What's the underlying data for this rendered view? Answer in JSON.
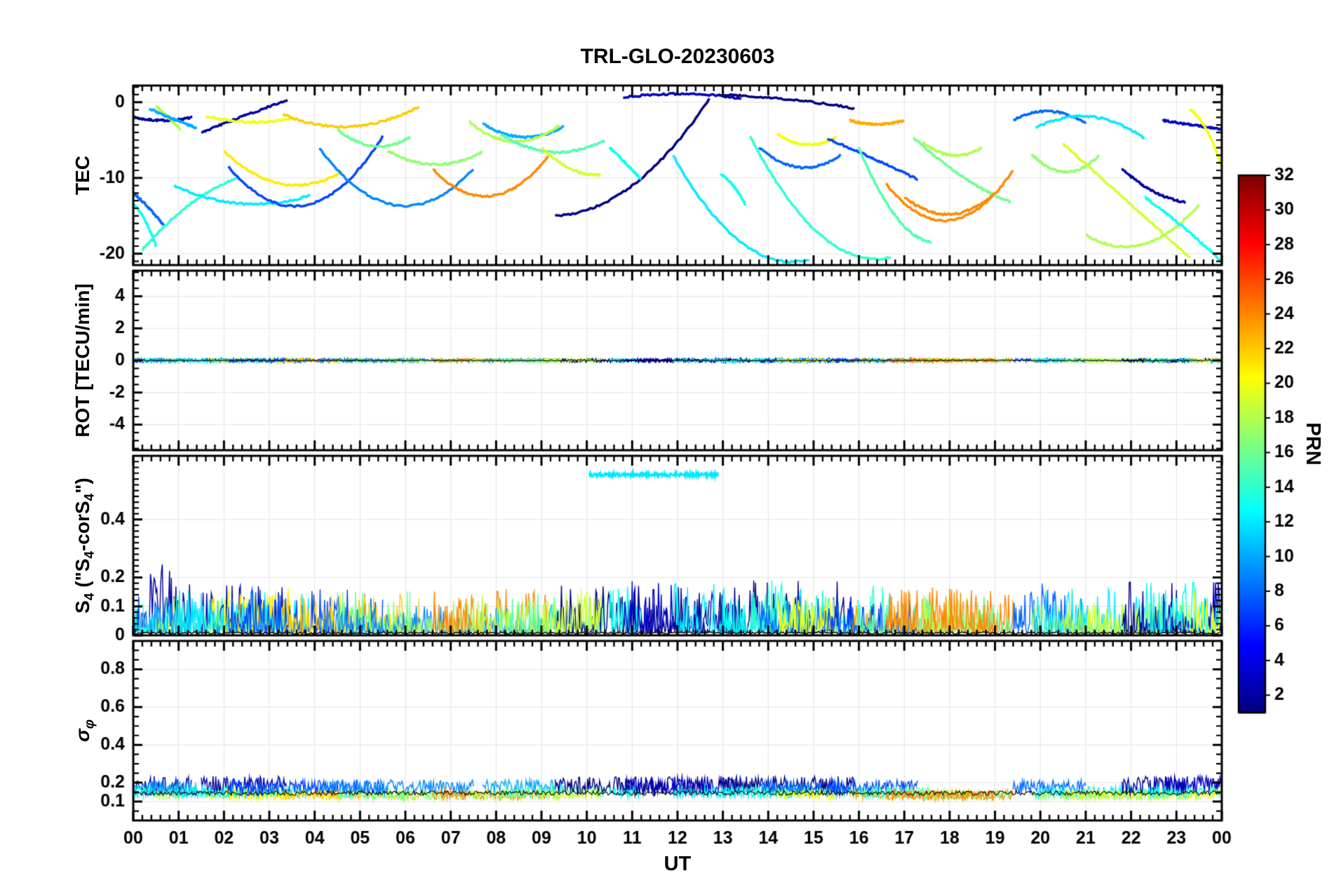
{
  "title": "TRL-GLO-20230603",
  "labels": {
    "ut": "UT",
    "tec": "TEC",
    "rot": "ROT [TECU/min]",
    "s4_parts": {
      "a": "S",
      "b": "4",
      "c": " (\"S",
      "d": "4",
      "e": "-corS",
      "f": "4",
      "g": "\")"
    },
    "sigma_parts": {
      "a": "σ",
      "b": "φ"
    },
    "prn": "PRN"
  },
  "axes": {
    "xticks": [
      {
        "v": 0,
        "l": "00"
      },
      {
        "v": 1,
        "l": "01"
      },
      {
        "v": 2,
        "l": "02"
      },
      {
        "v": 3,
        "l": "03"
      },
      {
        "v": 4,
        "l": "04"
      },
      {
        "v": 5,
        "l": "05"
      },
      {
        "v": 6,
        "l": "06"
      },
      {
        "v": 7,
        "l": "07"
      },
      {
        "v": 8,
        "l": "08"
      },
      {
        "v": 9,
        "l": "09"
      },
      {
        "v": 10,
        "l": "10"
      },
      {
        "v": 11,
        "l": "11"
      },
      {
        "v": 12,
        "l": "12"
      },
      {
        "v": 13,
        "l": "13"
      },
      {
        "v": 14,
        "l": "14"
      },
      {
        "v": 15,
        "l": "15"
      },
      {
        "v": 16,
        "l": "16"
      },
      {
        "v": 17,
        "l": "17"
      },
      {
        "v": 18,
        "l": "18"
      },
      {
        "v": 19,
        "l": "19"
      },
      {
        "v": 20,
        "l": "20"
      },
      {
        "v": 21,
        "l": "21"
      },
      {
        "v": 22,
        "l": "22"
      },
      {
        "v": 23,
        "l": "23"
      },
      {
        "v": 24,
        "l": "00"
      }
    ],
    "xminor": 0.2,
    "panels": [
      {
        "key": "tec",
        "ylim": [
          -21.5,
          2.2
        ],
        "yticks": [
          {
            "v": 0,
            "l": "0"
          },
          {
            "v": -10,
            "l": "-10"
          },
          {
            "v": -20,
            "l": "-20"
          }
        ],
        "yminor": 1
      },
      {
        "key": "rot",
        "ylim": [
          -5.6,
          5.6
        ],
        "yticks": [
          {
            "v": 4,
            "l": "4"
          },
          {
            "v": 2,
            "l": "2"
          },
          {
            "v": 0,
            "l": "0"
          },
          {
            "v": -2,
            "l": "-2"
          },
          {
            "v": -4,
            "l": "-4"
          }
        ],
        "yminor": 0.5
      },
      {
        "key": "s4",
        "ylim": [
          0,
          0.62
        ],
        "yticks": [
          {
            "v": 0.4,
            "l": "0.4"
          },
          {
            "v": 0.2,
            "l": "0.2"
          },
          {
            "v": 0.1,
            "l": "0.1"
          },
          {
            "v": 0,
            "l": "0"
          }
        ],
        "yminor": 0.02
      },
      {
        "key": "sigma_phi",
        "ylim": [
          0,
          0.95
        ],
        "yticks": [
          {
            "v": 0.8,
            "l": "0.8"
          },
          {
            "v": 0.6,
            "l": "0.6"
          },
          {
            "v": 0.4,
            "l": "0.4"
          },
          {
            "v": 0.2,
            "l": "0.2"
          },
          {
            "v": 0.1,
            "l": "0.1"
          }
        ],
        "yminor": 0.05
      }
    ]
  },
  "colorbar": {
    "label": "PRN",
    "range": [
      1,
      32
    ],
    "ticks": [
      2,
      4,
      6,
      8,
      10,
      12,
      14,
      16,
      18,
      20,
      22,
      24,
      26,
      28,
      30,
      32
    ],
    "colormap": "jet"
  },
  "chart_data": {
    "type": "line",
    "title": "TRL-GLO-20230603",
    "xlabel": "UT",
    "x_range_hours": [
      0,
      24
    ],
    "color_by": "PRN",
    "prn_range": [
      1,
      32
    ],
    "colormap": "jet",
    "panel_descriptions": [
      "TEC satellite arcs, values 2 to -21 TECU",
      "ROT rate of TEC, flat band near 0 TECU/min",
      "S4 scintillation index, noisy 0-0.2 with cyan plateau 0.55 from 10-13 UT",
      "sigma-phi phase scintillation, noisy band 0.1-0.3"
    ],
    "tec_arcs": [
      {
        "prn": 2,
        "t": [
          0.0,
          1.3
        ],
        "y": [
          -2.0,
          -2.4,
          -2.0
        ]
      },
      {
        "prn": 8,
        "t": [
          0.0,
          0.7
        ],
        "y": [
          -12.0,
          -14.0,
          -16.5
        ]
      },
      {
        "prn": 13,
        "t": [
          0.0,
          0.5
        ],
        "y": [
          -13.5,
          -15.5,
          -19.0
        ]
      },
      {
        "prn": 14,
        "t": [
          0.2,
          2.3
        ],
        "y": [
          -19.5,
          -13.5,
          -10.0
        ]
      },
      {
        "prn": 18,
        "t": [
          0.5,
          1.05
        ],
        "y": [
          -0.5,
          -2.0,
          -3.6
        ]
      },
      {
        "prn": 10,
        "t": [
          0.35,
          1.4
        ],
        "y": [
          -0.8,
          -2.2,
          -3.4
        ]
      },
      {
        "prn": 2,
        "t": [
          1.5,
          3.4
        ],
        "y": [
          -4.0,
          -1.8,
          0.3
        ]
      },
      {
        "prn": 20,
        "t": [
          1.6,
          3.55
        ],
        "y": [
          -1.8,
          -2.6,
          -2.1
        ]
      },
      {
        "prn": 21,
        "t": [
          2.0,
          4.6
        ],
        "y": [
          -6.5,
          -10.8,
          -9.2
        ]
      },
      {
        "prn": 12,
        "t": [
          0.9,
          3.9
        ],
        "y": [
          -11.0,
          -13.4,
          -12.3
        ]
      },
      {
        "prn": 7,
        "t": [
          2.1,
          5.5
        ],
        "y": [
          -8.5,
          -13.6,
          -4.5
        ]
      },
      {
        "prn": 22,
        "t": [
          3.3,
          6.3
        ],
        "y": [
          -1.6,
          -3.2,
          -0.6
        ]
      },
      {
        "prn": 16,
        "t": [
          4.5,
          6.1
        ],
        "y": [
          -3.6,
          -5.8,
          -4.6
        ]
      },
      {
        "prn": 9,
        "t": [
          4.1,
          7.5
        ],
        "y": [
          -6.0,
          -13.6,
          -8.8
        ]
      },
      {
        "prn": 17,
        "t": [
          5.6,
          7.7
        ],
        "y": [
          -6.4,
          -8.2,
          -6.6
        ]
      },
      {
        "prn": 24,
        "t": [
          6.6,
          9.15
        ],
        "y": [
          -8.8,
          -12.4,
          -7.2
        ]
      },
      {
        "prn": 10,
        "t": [
          7.7,
          9.5
        ],
        "y": [
          -2.8,
          -4.6,
          -3.2
        ]
      },
      {
        "prn": 18,
        "t": [
          7.4,
          9.4
        ],
        "y": [
          -2.6,
          -5.2,
          -3.0
        ]
      },
      {
        "prn": 15,
        "t": [
          8.1,
          10.4
        ],
        "y": [
          -4.2,
          -6.6,
          -5.0
        ]
      },
      {
        "prn": 1,
        "t": [
          9.3,
          12.7
        ],
        "y": [
          -15.0,
          -11.0,
          0.4
        ]
      },
      {
        "prn": 19,
        "t": [
          9.0,
          10.3
        ],
        "y": [
          -6.0,
          -8.8,
          -9.6
        ]
      },
      {
        "prn": 13,
        "t": [
          10.5,
          11.2
        ],
        "y": [
          -6.0,
          -8.0,
          -10.2
        ]
      },
      {
        "prn": 3,
        "t": [
          10.8,
          13.4
        ],
        "y": [
          0.6,
          1.1,
          0.5
        ]
      },
      {
        "prn": 1,
        "t": [
          12.9,
          15.9
        ],
        "y": [
          1.0,
          0.4,
          -0.8
        ]
      },
      {
        "prn": 12,
        "t": [
          11.9,
          14.9
        ],
        "y": [
          -7.0,
          -18.5,
          -20.8
        ]
      },
      {
        "prn": 13,
        "t": [
          12.95,
          13.5
        ],
        "y": [
          -9.5,
          -11.0,
          -13.5
        ]
      },
      {
        "prn": 14,
        "t": [
          13.6,
          16.7
        ],
        "y": [
          -4.5,
          -17.5,
          -20.5
        ]
      },
      {
        "prn": 8,
        "t": [
          13.8,
          15.6
        ],
        "y": [
          -6.0,
          -8.6,
          -7.0
        ]
      },
      {
        "prn": 20,
        "t": [
          14.2,
          15.5
        ],
        "y": [
          -4.2,
          -5.6,
          -4.6
        ]
      },
      {
        "prn": 23,
        "t": [
          15.8,
          17.0
        ],
        "y": [
          -2.4,
          -2.9,
          -2.4
        ]
      },
      {
        "prn": 7,
        "t": [
          15.3,
          17.3
        ],
        "y": [
          -4.8,
          -7.4,
          -10.2
        ]
      },
      {
        "prn": 15,
        "t": [
          16.0,
          17.6
        ],
        "y": [
          -6.0,
          -15.0,
          -18.5
        ]
      },
      {
        "prn": 24,
        "t": [
          16.6,
          19.4
        ],
        "y": [
          -10.8,
          -15.6,
          -9.0
        ]
      },
      {
        "prn": 16,
        "t": [
          17.2,
          19.35
        ],
        "y": [
          -4.6,
          -9.8,
          -13.2
        ]
      },
      {
        "prn": 18,
        "t": [
          17.4,
          18.7
        ],
        "y": [
          -5.2,
          -7.0,
          -6.0
        ]
      },
      {
        "prn": 8,
        "t": [
          19.4,
          21.0
        ],
        "y": [
          -2.4,
          -1.2,
          -2.8
        ]
      },
      {
        "prn": 17,
        "t": [
          19.8,
          21.3
        ],
        "y": [
          -6.8,
          -9.2,
          -7.0
        ]
      },
      {
        "prn": 12,
        "t": [
          19.9,
          22.3
        ],
        "y": [
          -3.4,
          -1.9,
          -4.8
        ]
      },
      {
        "prn": 19,
        "t": [
          20.5,
          23.3
        ],
        "y": [
          -5.5,
          -13.0,
          -20.5
        ]
      },
      {
        "prn": 18,
        "t": [
          21.0,
          23.5
        ],
        "y": [
          -17.5,
          -18.8,
          -13.5
        ]
      },
      {
        "prn": 2,
        "t": [
          21.8,
          23.2
        ],
        "y": [
          -8.8,
          -11.8,
          -13.2
        ]
      },
      {
        "prn": 3,
        "t": [
          22.7,
          24.0
        ],
        "y": [
          -2.4,
          -3.0,
          -3.6
        ]
      },
      {
        "prn": 13,
        "t": [
          22.3,
          24.0
        ],
        "y": [
          -12.5,
          -16.5,
          -21.0
        ]
      },
      {
        "prn": 20,
        "t": [
          23.3,
          24.0
        ],
        "y": [
          -1.0,
          -3.5,
          -8.5
        ]
      },
      {
        "prn": 24,
        "t": [
          17.0,
          19.0
        ],
        "y": [
          -12.5,
          -14.8,
          -12.0
        ]
      }
    ],
    "rot": {
      "base": 0,
      "noise_amp": 0.12,
      "black_noise_amp": 0.04
    },
    "s4": {
      "baseline": 0.01,
      "amp_default_min": 0.09,
      "amp_default_span": 0.09,
      "amp_navy_min": 0.16,
      "amp_navy_span": 0.08,
      "black_base": 0.004,
      "black_amp": 0.008,
      "plateau": {
        "prn": 12,
        "t": [
          10.05,
          12.9
        ],
        "y": 0.555,
        "jitter": 0.006
      }
    },
    "sigma_phi": {
      "black_base": 0.145,
      "black_amp": 0.012,
      "bands": [
        {
          "prns": "1-3",
          "base": 0.185,
          "amp": 0.05
        },
        {
          "prns": "7-10",
          "base": 0.175,
          "amp": 0.04
        },
        {
          "prns": "11-15",
          "base": 0.15,
          "amp": 0.03
        },
        {
          "prns": "other",
          "base": 0.135,
          "amp": 0.025
        }
      ]
    }
  }
}
